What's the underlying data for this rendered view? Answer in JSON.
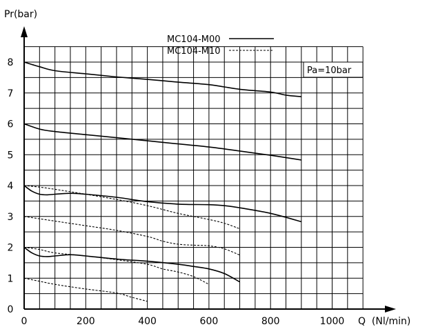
{
  "chart_data": {
    "type": "line",
    "title": "",
    "ylabel": "Pr(bar)",
    "xlabel": "Q  (Nl/min)",
    "x_ticks": [
      "0",
      "200",
      "400",
      "600",
      "800",
      "1000"
    ],
    "y_ticks": [
      "0",
      "1",
      "2",
      "3",
      "4",
      "5",
      "6",
      "7",
      "8"
    ],
    "xlim": [
      0,
      1100
    ],
    "ylim": [
      0,
      8.5
    ],
    "grid": true,
    "annotation": "Pa=10bar",
    "legend": [
      {
        "label": "MC104-M00",
        "style": "solid"
      },
      {
        "label": "MC104-M10",
        "style": "dashed"
      }
    ],
    "series": [
      {
        "legend": 0,
        "x": [
          0,
          50,
          100,
          200,
          300,
          400,
          500,
          600,
          700,
          800,
          850,
          900
        ],
        "y": [
          8.0,
          7.85,
          7.72,
          7.62,
          7.52,
          7.44,
          7.35,
          7.27,
          7.12,
          7.03,
          6.93,
          6.88
        ]
      },
      {
        "legend": 0,
        "x": [
          0,
          50,
          100,
          200,
          300,
          400,
          500,
          600,
          700,
          800,
          900
        ],
        "y": [
          6.0,
          5.83,
          5.75,
          5.65,
          5.55,
          5.45,
          5.35,
          5.25,
          5.12,
          4.98,
          4.83
        ]
      },
      {
        "legend": 0,
        "x": [
          0,
          25,
          50,
          75,
          100,
          150,
          200,
          300,
          400,
          500,
          600,
          650,
          700,
          800,
          900
        ],
        "y": [
          4.0,
          3.82,
          3.72,
          3.7,
          3.72,
          3.75,
          3.72,
          3.62,
          3.48,
          3.4,
          3.38,
          3.35,
          3.28,
          3.1,
          2.83
        ]
      },
      {
        "legend": 0,
        "x": [
          0,
          25,
          50,
          75,
          100,
          150,
          200,
          300,
          400,
          500,
          550,
          600,
          650,
          700
        ],
        "y": [
          2.0,
          1.82,
          1.72,
          1.7,
          1.72,
          1.76,
          1.72,
          1.62,
          1.55,
          1.45,
          1.38,
          1.3,
          1.15,
          0.88
        ]
      },
      {
        "legend": 1,
        "x": [
          0,
          50,
          100,
          200,
          300,
          400,
          500,
          600,
          650,
          700
        ],
        "y": [
          4.0,
          3.95,
          3.88,
          3.72,
          3.55,
          3.35,
          3.1,
          2.9,
          2.78,
          2.6
        ]
      },
      {
        "legend": 1,
        "x": [
          0,
          100,
          200,
          300,
          400,
          450,
          500,
          550,
          600,
          650,
          700
        ],
        "y": [
          3.0,
          2.85,
          2.7,
          2.55,
          2.35,
          2.2,
          2.1,
          2.07,
          2.05,
          1.95,
          1.75
        ]
      },
      {
        "legend": 1,
        "x": [
          0,
          50,
          100,
          200,
          300,
          400,
          450,
          500,
          550,
          600
        ],
        "y": [
          2.0,
          1.93,
          1.82,
          1.72,
          1.6,
          1.45,
          1.3,
          1.2,
          1.05,
          0.8
        ]
      },
      {
        "legend": 1,
        "x": [
          0,
          50,
          100,
          200,
          300,
          350,
          400
        ],
        "y": [
          1.0,
          0.9,
          0.8,
          0.65,
          0.52,
          0.38,
          0.25
        ]
      }
    ]
  }
}
